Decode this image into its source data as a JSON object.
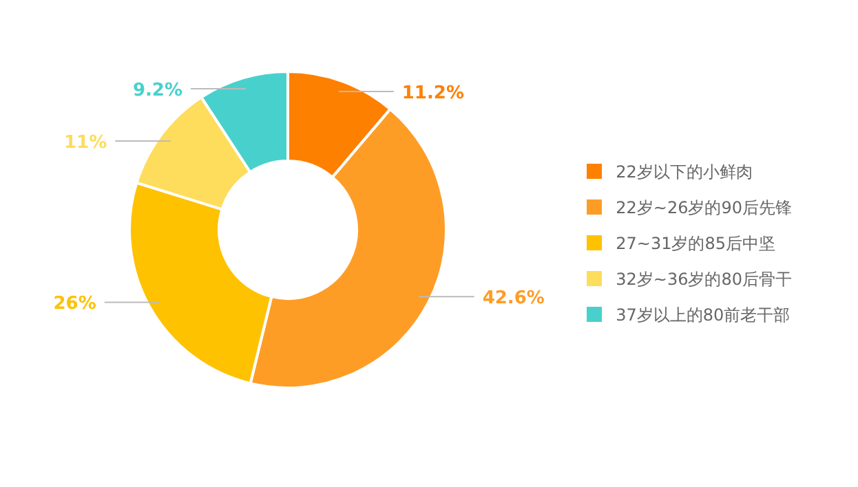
{
  "chart_data": {
    "type": "donut",
    "categories": [
      "22岁以下的小鲜肉",
      "22岁~26岁的90后先锋",
      "27~31岁的85后中坚",
      "32岁~36岁的80后骨干",
      "37岁以上的80前老干部"
    ],
    "values": [
      11.2,
      42.6,
      26,
      11,
      9.2
    ],
    "value_labels": [
      "11.2%",
      "42.6%",
      "26%",
      "11%",
      "9.2%"
    ],
    "colors": [
      "#fe8001",
      "#fe9d26",
      "#fec200",
      "#fedc5c",
      "#48d1cc"
    ],
    "legend": "right"
  }
}
